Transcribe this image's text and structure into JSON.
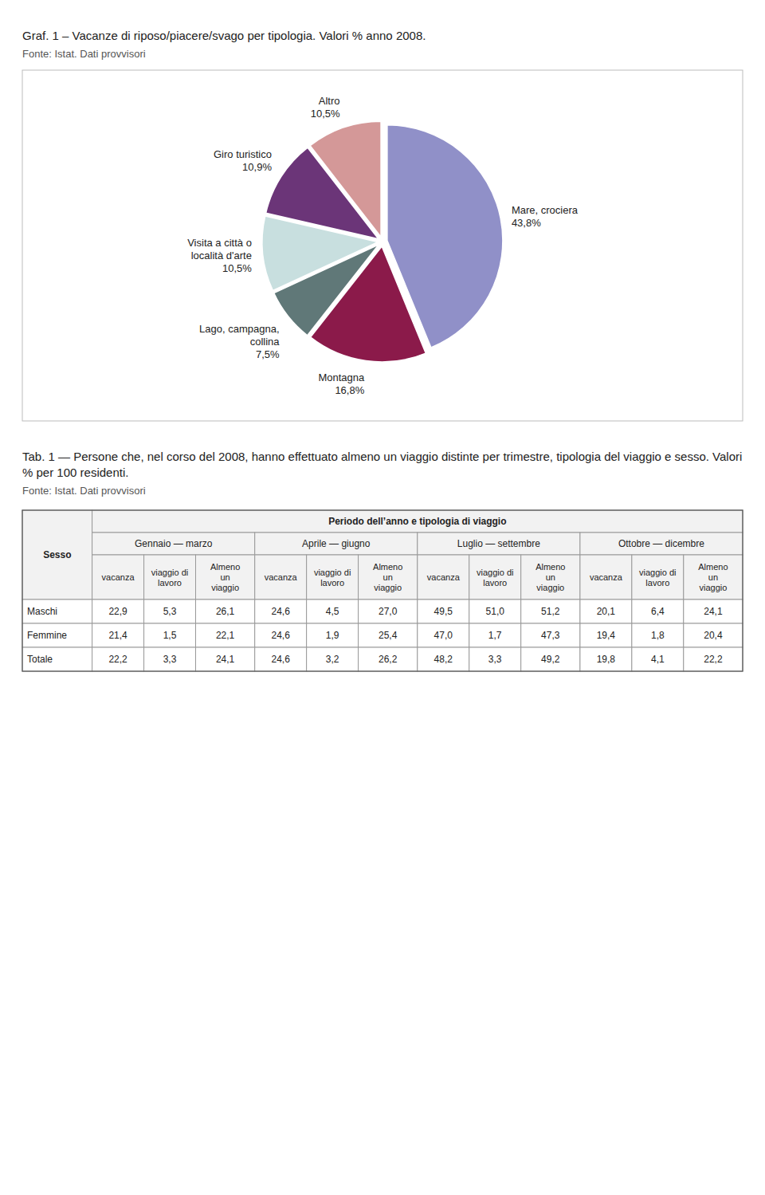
{
  "chart_data": [
    {
      "type": "pie",
      "title": "Graf. 1 – Vacanze di riposo/piacere/svago per tipologia. Valori % anno 2008.",
      "subtitle": "Fonte: Istat. Dati provvisori",
      "categories": [
        "Mare, crociera",
        "Montagna",
        "Lago, campagna,\ncollina",
        "Visita a città o\nlocalità d'arte",
        "Giro turistico",
        "Altro"
      ],
      "values": [
        43.8,
        16.8,
        7.5,
        10.5,
        10.9,
        10.5
      ],
      "value_labels": [
        "43,8%",
        "16,8%",
        "7,5%",
        "10,5%",
        "10,9%",
        "10,5%"
      ],
      "colors": [
        "#9090c8",
        "#8b1a4a",
        "#607878",
        "#c8dfdf",
        "#6b3578",
        "#d49898"
      ],
      "data_labels": true
    },
    {
      "type": "table",
      "title": "Tab. 1 — Persone che, nel corso del 2008, hanno effettuato almeno un viaggio distinte per trimestre, tipologia del viaggio e sesso. Valori % per 100 residenti.",
      "subtitle": "Fonte: Istat. Dati provvisori",
      "row_header": "Sesso",
      "header": "Periodo dell’anno e  tipologia di viaggio",
      "groups": [
        "Gennaio — marzo",
        "Aprile —  giugno",
        "Luglio —  settembre",
        "Ottobre — dicembre"
      ],
      "columns": [
        "vacanza",
        "viaggio di\nlavoro",
        "Almeno\nun\nviaggio"
      ],
      "categories": [
        "Maschi",
        "Femmine",
        "Totale"
      ],
      "values": [
        [
          22.9,
          5.3,
          26.1,
          24.6,
          4.5,
          27.0,
          49.5,
          51.0,
          51.2,
          20.1,
          6.4,
          24.1
        ],
        [
          21.4,
          1.5,
          22.1,
          24.6,
          1.9,
          25.4,
          47.0,
          1.7,
          47.3,
          19.4,
          1.8,
          20.4
        ],
        [
          22.2,
          3.3,
          24.1,
          24.6,
          3.2,
          26.2,
          48.2,
          3.3,
          49.2,
          19.8,
          4.1,
          22.2
        ]
      ],
      "value_labels": [
        [
          "22,9",
          "5,3",
          "26,1",
          "24,6",
          "4,5",
          "27,0",
          "49,5",
          "51,0",
          "51,2",
          "20,1",
          "6,4",
          "24,1"
        ],
        [
          "21,4",
          "1,5",
          "22,1",
          "24,6",
          "1,9",
          "25,4",
          "47,0",
          "1,7",
          "47,3",
          "19,4",
          "1,8",
          "20,4"
        ],
        [
          "22,2",
          "3,3",
          "24,1",
          "24,6",
          "3,2",
          "26,2",
          "48,2",
          "3,3",
          "49,2",
          "19,8",
          "4,1",
          "22,2"
        ]
      ]
    }
  ]
}
